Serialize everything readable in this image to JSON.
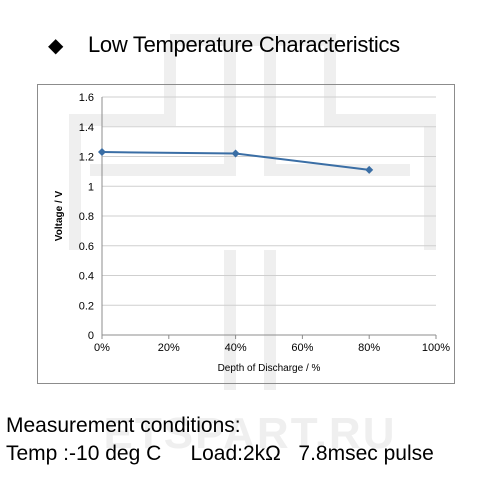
{
  "header": {
    "bullet_icon": "diamond-bullet-icon",
    "title": "Low Temperature Characteristics"
  },
  "chart_data": {
    "type": "line",
    "x": [
      0,
      40,
      80
    ],
    "series": [
      {
        "values": [
          1.23,
          1.22,
          1.11
        ],
        "color": "#3a6ea5"
      }
    ],
    "xlabel": "Depth of Discharge / %",
    "ylabel": "Voltage / V",
    "xlim": [
      0,
      100
    ],
    "ylim": [
      0,
      1.6
    ],
    "x_ticks": [
      0,
      20,
      40,
      60,
      80,
      100
    ],
    "x_tick_labels": [
      "0%",
      "20%",
      "40%",
      "60%",
      "80%",
      "100%"
    ],
    "y_ticks": [
      0,
      0.2,
      0.4,
      0.6,
      0.8,
      1,
      1.2,
      1.4,
      1.6
    ],
    "y_tick_labels": [
      "0",
      "0.2",
      "0.4",
      "0.6",
      "0.8",
      "1",
      "1.2",
      "1.4",
      "1.6"
    ],
    "grid": "horizontal",
    "marker": "diamond",
    "legend": "none"
  },
  "conditions": {
    "heading": "Measurement conditions:",
    "temp": "Temp :-10 deg C",
    "load": "Load:2kΩ",
    "pulse": "7.8msec pulse"
  },
  "watermark": {
    "text": "ETSPART.RU",
    "color": "#eeeeee"
  }
}
